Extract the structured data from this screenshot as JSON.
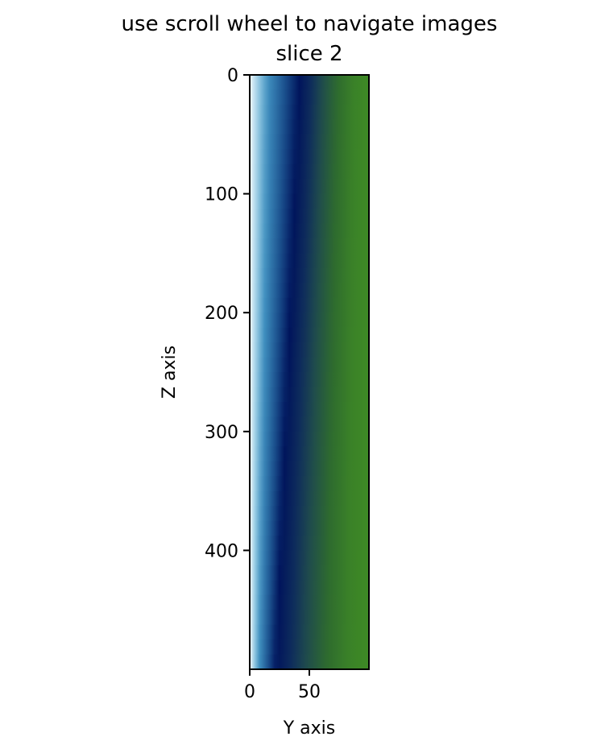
{
  "chart_data": {
    "type": "heatmap",
    "title": "use scroll wheel to navigate images",
    "subtitle": "slice 2",
    "xlabel": "Y axis",
    "ylabel": "Z axis",
    "xlim": [
      0,
      100
    ],
    "ylim": [
      500,
      0
    ],
    "x_ticks": [
      {
        "value": 0,
        "label": "0"
      },
      {
        "value": 50,
        "label": "50"
      }
    ],
    "y_ticks": [
      {
        "value": 0,
        "label": "0"
      },
      {
        "value": 100,
        "label": "100"
      },
      {
        "value": 200,
        "label": "200"
      },
      {
        "value": 300,
        "label": "300"
      },
      {
        "value": 400,
        "label": "400"
      }
    ],
    "grid": false,
    "colormap": {
      "stops": [
        {
          "pos": 0.0,
          "color": "#f4f9fc"
        },
        {
          "pos": 0.06,
          "color": "#9ccfe6"
        },
        {
          "pos": 0.14,
          "color": "#3f8fbf"
        },
        {
          "pos": 0.27,
          "color": "#1a4f8c"
        },
        {
          "pos": 0.38,
          "color": "#00145c"
        },
        {
          "pos": 0.48,
          "color": "#0e2c5c"
        },
        {
          "pos": 0.58,
          "color": "#1f4b4d"
        },
        {
          "pos": 0.72,
          "color": "#2e6b2e"
        },
        {
          "pos": 0.86,
          "color": "#3a8128"
        },
        {
          "pos": 1.0,
          "color": "#3e8a25"
        }
      ]
    },
    "band_center_top": 42,
    "band_center_bottom": 22
  }
}
